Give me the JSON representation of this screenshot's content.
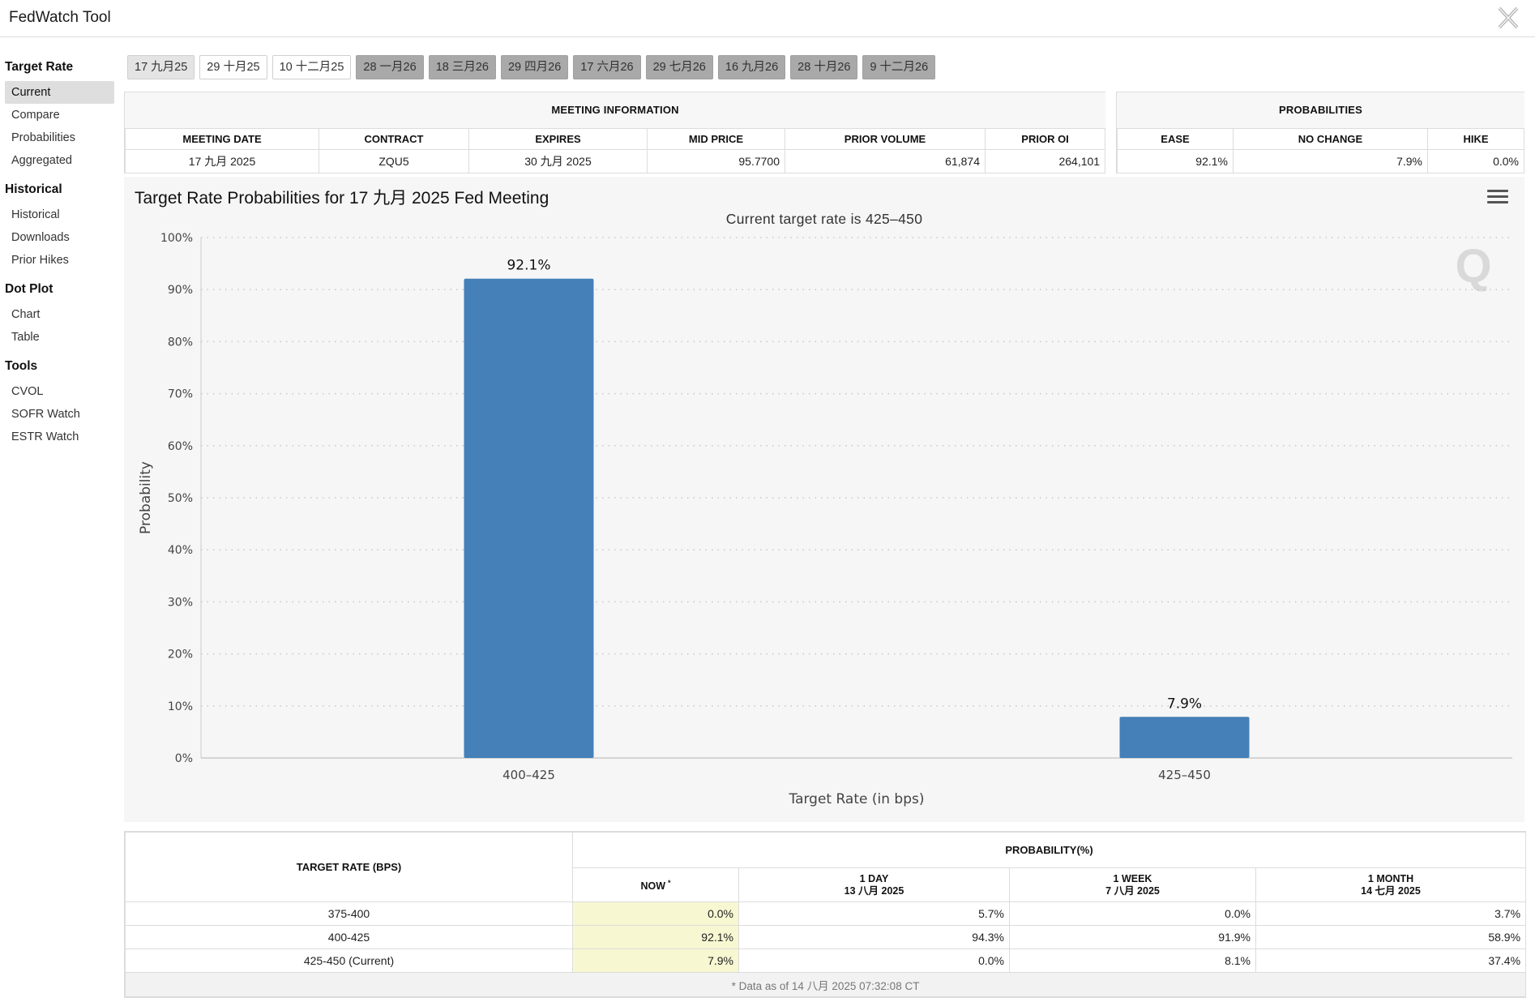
{
  "app": {
    "title": "FedWatch Tool",
    "close_icon": "close-x-icon"
  },
  "sidebar": {
    "groups": [
      {
        "heading": "Target Rate",
        "items": [
          "Current",
          "Compare",
          "Probabilities",
          "Aggregated"
        ],
        "active": 0
      },
      {
        "heading": "Historical",
        "items": [
          "Historical",
          "Downloads",
          "Prior Hikes"
        ]
      },
      {
        "heading": "Dot Plot",
        "items": [
          "Chart",
          "Table"
        ]
      },
      {
        "heading": "Tools",
        "items": [
          "CVOL",
          "SOFR Watch",
          "ESTR Watch"
        ]
      }
    ]
  },
  "meeting_tabs": {
    "selected": 0,
    "items": [
      "17 九月25",
      "29 十月25",
      "10 十二月25",
      "28 一月26",
      "18 三月26",
      "29 四月26",
      "17 六月26",
      "29 七月26",
      "16 九月26",
      "28 十月26",
      "9 十二月26"
    ],
    "styles": [
      "sel",
      "plain",
      "plain",
      "gray",
      "gray",
      "gray",
      "gray",
      "gray",
      "gray",
      "gray",
      "gray"
    ]
  },
  "meeting_info": {
    "title": "MEETING INFORMATION",
    "headers": [
      "MEETING DATE",
      "CONTRACT",
      "EXPIRES",
      "MID PRICE",
      "PRIOR VOLUME",
      "PRIOR OI"
    ],
    "values": [
      "17 九月 2025",
      "ZQU5",
      "30 九月 2025",
      "95.7700",
      "61,874",
      "264,101"
    ]
  },
  "probabilities": {
    "title": "PROBABILITIES",
    "headers": [
      "EASE",
      "NO CHANGE",
      "HIKE"
    ],
    "values": [
      "92.1%",
      "7.9%",
      "0.0%"
    ]
  },
  "chart_data": {
    "type": "bar",
    "title": "Target Rate Probabilities for 17 九月 2025 Fed Meeting",
    "subtitle": "Current target rate is 425–450",
    "xlabel": "Target Rate (in bps)",
    "ylabel": "Probability",
    "categories": [
      "400–425",
      "425–450"
    ],
    "values": [
      92.1,
      7.9
    ],
    "data_labels": [
      "92.1%",
      "7.9%"
    ],
    "ylim": [
      0,
      100
    ],
    "yticks": [
      0,
      10,
      20,
      30,
      40,
      50,
      60,
      70,
      80,
      90,
      100
    ],
    "ytick_labels": [
      "0%",
      "10%",
      "20%",
      "30%",
      "40%",
      "50%",
      "60%",
      "70%",
      "80%",
      "90%",
      "100%"
    ],
    "grid": true,
    "bar_color": "#4580b8"
  },
  "rate_table": {
    "header_rate": "TARGET RATE (BPS)",
    "header_prob": "PROBABILITY(%)",
    "cols": [
      {
        "line1": "NOW",
        "line2": "",
        "star": "*"
      },
      {
        "line1": "1 DAY",
        "line2": "13 八月 2025"
      },
      {
        "line1": "1 WEEK",
        "line2": "7 八月 2025"
      },
      {
        "line1": "1 MONTH",
        "line2": "14 七月 2025"
      }
    ],
    "rows": [
      {
        "rate": "375-400",
        "vals": [
          "0.0%",
          "5.7%",
          "0.0%",
          "3.7%"
        ]
      },
      {
        "rate": "400-425",
        "vals": [
          "92.1%",
          "94.3%",
          "91.9%",
          "58.9%"
        ]
      },
      {
        "rate": "425-450 (Current)",
        "vals": [
          "7.9%",
          "0.0%",
          "8.1%",
          "37.4%"
        ]
      }
    ],
    "footnote": "* Data as of 14 八月 2025 07:32:08 CT"
  }
}
